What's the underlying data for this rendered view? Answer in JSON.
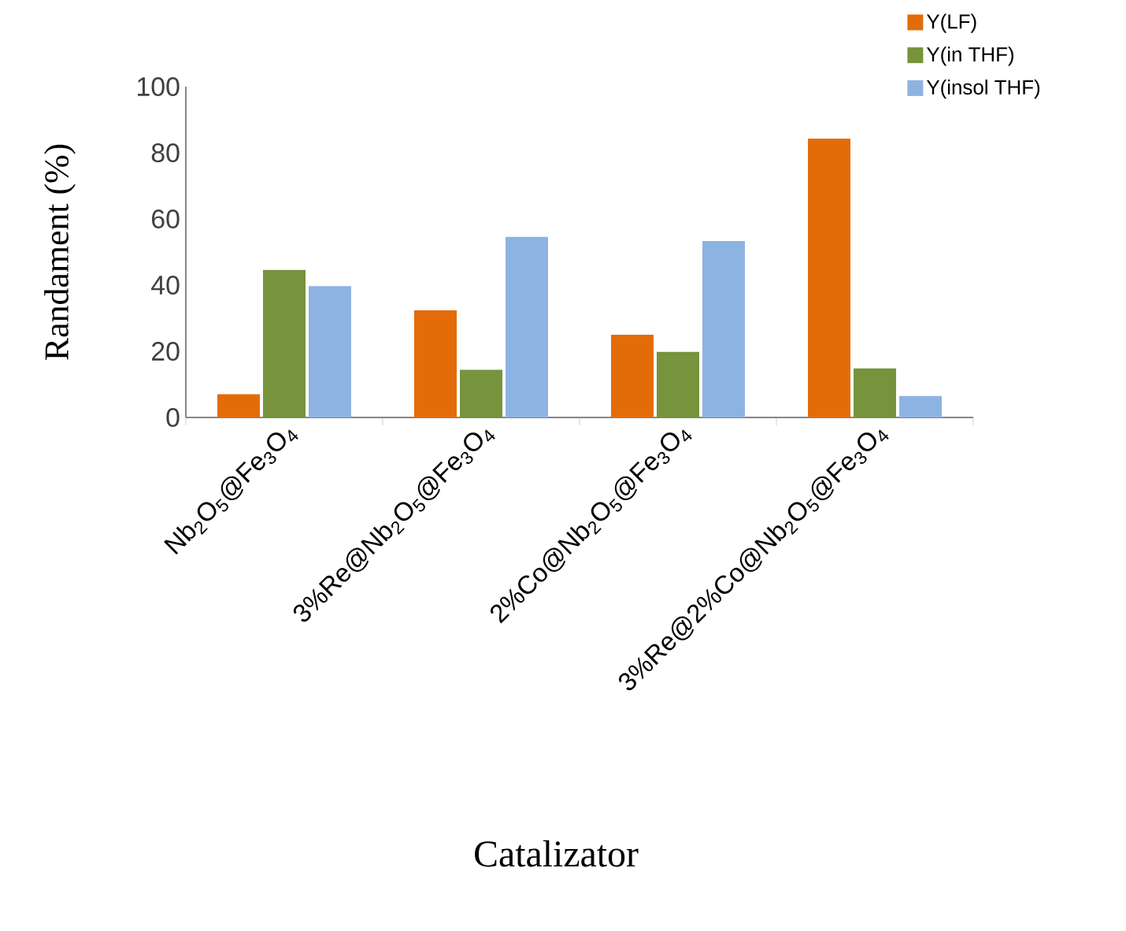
{
  "chart_data": {
    "type": "bar",
    "categories": [
      "Nb$_{2}$O$_{5}$@Fe$_{3}$O$_{4}$",
      "3%Re@Nb$_{2}$O$_{5}$@Fe$_{3}$O$_{4}$",
      "2%Co@Nb$_{2}$O$_{5}$@Fe$_{3}$O$_{4}$",
      "3%Re@2%Co@Nb$_{2}$O$_{5}$@Fe$_{3}$O$_{4}$"
    ],
    "series": [
      {
        "name": "Y(LF)",
        "color": "#e36c09",
        "values": [
          7,
          32.4,
          25,
          84.3
        ]
      },
      {
        "name": "Y(in THF)",
        "color": "#77933c",
        "values": [
          44.6,
          14.4,
          19.8,
          14.8
        ]
      },
      {
        "name": "Y(insol THF)",
        "color": "#8db3e2",
        "values": [
          39.7,
          54.6,
          53.3,
          6.5
        ]
      }
    ],
    "xlabel": "Catalizator",
    "ylabel": "Randament (%)",
    "ylim": [
      0,
      100
    ],
    "yticks": [
      0,
      20,
      40,
      60,
      80,
      100
    ],
    "legend": "top right"
  }
}
